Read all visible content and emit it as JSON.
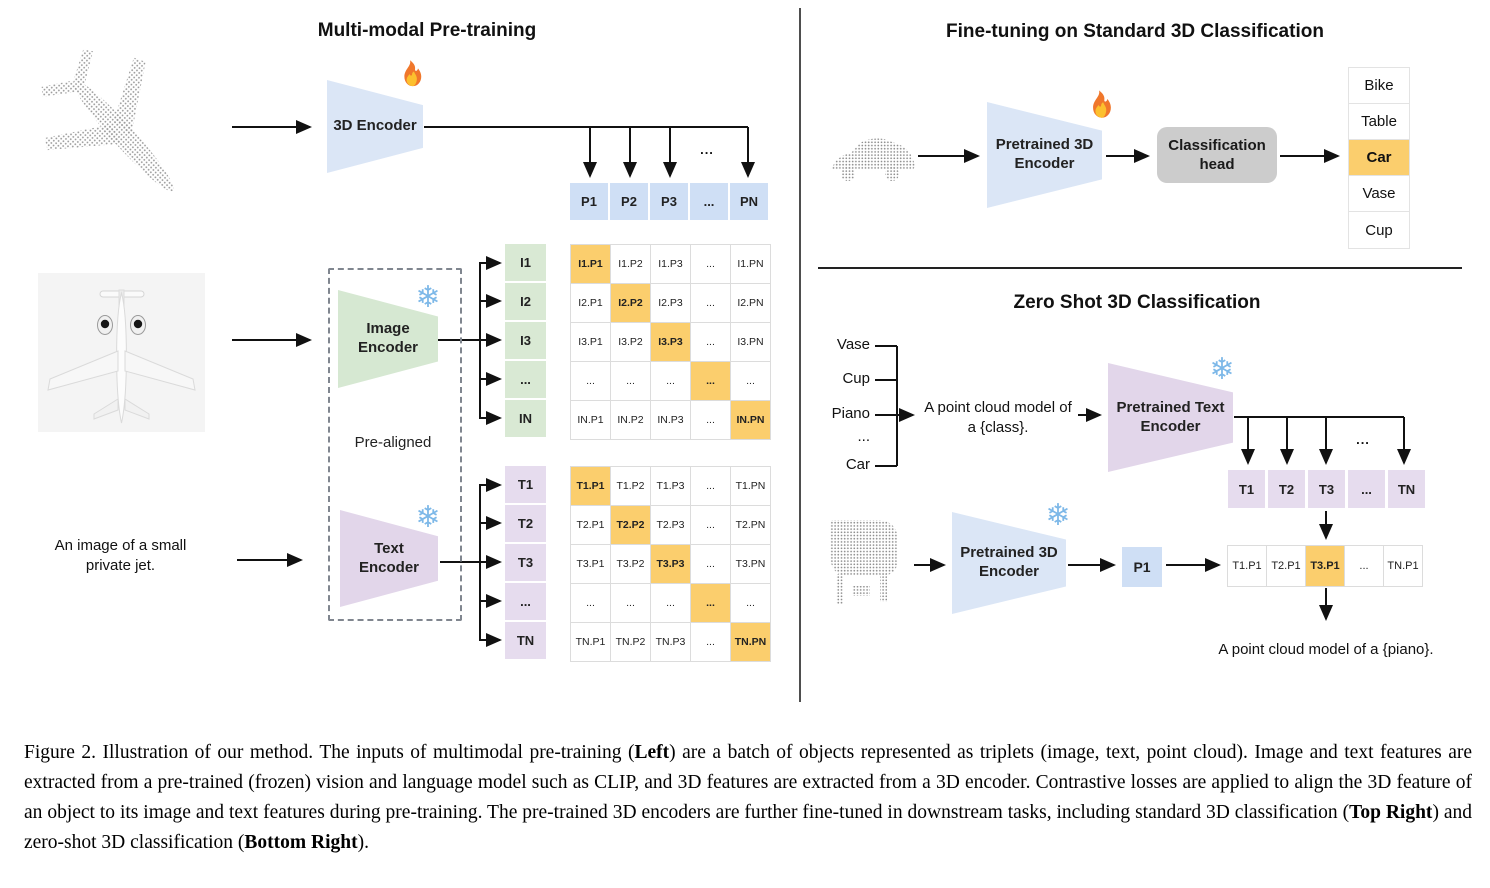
{
  "figure": {
    "left_panel": {
      "title": "Multi-modal Pre-training",
      "inputs": {
        "pointcloud_object": "airplane point cloud",
        "image_object": "airplane image",
        "text_caption_line1": "An image of a small",
        "text_caption_line2": "private jet."
      },
      "encoder_3d_label": "3D Encoder",
      "image_encoder_line1": "Image",
      "image_encoder_line2": "Encoder",
      "text_encoder_line1": "Text",
      "text_encoder_line2": "Encoder",
      "prealigned_label": "Pre-aligned",
      "arrow_ellipsis": "...",
      "p_row": [
        "P1",
        "P2",
        "P3",
        "...",
        "PN"
      ],
      "image_feature_labels": [
        "I1",
        "I2",
        "I3",
        "...",
        "IN"
      ],
      "text_feature_labels": [
        "T1",
        "T2",
        "T3",
        "...",
        "TN"
      ],
      "image_matrix_rows": [
        [
          "I1.P1",
          "I1.P2",
          "I1.P3",
          "...",
          "I1.PN"
        ],
        [
          "I2.P1",
          "I2.P2",
          "I2.P3",
          "...",
          "I2.PN"
        ],
        [
          "I3.P1",
          "I3.P2",
          "I3.P3",
          "...",
          "I3.PN"
        ],
        [
          "...",
          "...",
          "...",
          "...",
          "..."
        ],
        [
          "IN.P1",
          "IN.P2",
          "IN.P3",
          "...",
          "IN.PN"
        ]
      ],
      "text_matrix_rows": [
        [
          "T1.P1",
          "T1.P2",
          "T1.P3",
          "...",
          "T1.PN"
        ],
        [
          "T2.P1",
          "T2.P2",
          "T2.P3",
          "...",
          "T2.PN"
        ],
        [
          "T3.P1",
          "T3.P2",
          "T3.P3",
          "...",
          "T3.PN"
        ],
        [
          "...",
          "...",
          "...",
          "...",
          "..."
        ],
        [
          "TN.P1",
          "TN.P2",
          "TN.P3",
          "...",
          "TN.PN"
        ]
      ]
    },
    "top_right_panel": {
      "title": "Fine-tuning on Standard 3D Classification",
      "input_object": "car point cloud",
      "encoder_line1": "Pretrained 3D",
      "encoder_line2": "Encoder",
      "head_line1": "Classification",
      "head_line2": "head",
      "classes": [
        "Bike",
        "Table",
        "Car",
        "Vase",
        "Cup"
      ],
      "predicted_class": "Car"
    },
    "bottom_right_panel": {
      "title": "Zero Shot 3D Classification",
      "candidate_classes": [
        "Vase",
        "Cup",
        "Piano",
        "...",
        "Car"
      ],
      "prompt_line1": "A point cloud model of",
      "prompt_line2": "a {class}.",
      "text_encoder_line1": "Pretrained Text",
      "text_encoder_line2": "Encoder",
      "t_row": [
        "T1",
        "T2",
        "T3",
        "...",
        "TN"
      ],
      "arrow_ellipsis": "...",
      "input_object": "piano point cloud",
      "encoder_3d_line1": "Pretrained 3D",
      "encoder_3d_line2": "Encoder",
      "p_feature": "P1",
      "similarity_row": [
        "T1.P1",
        "T2.P1",
        "T3.P1",
        "...",
        "TN.P1"
      ],
      "best_match": "T3.P1",
      "result_text": "A point cloud model of a {piano}."
    },
    "caption_segments": [
      {
        "text": "Figure 2. Illustration of our method. The inputs of multimodal pre-training (",
        "bold": false
      },
      {
        "text": "Left",
        "bold": true
      },
      {
        "text": ") are a batch of objects represented as triplets (image, text, point cloud). Image and text features are extracted from a pre-trained (frozen) vision and language model such as CLIP, and 3D features are extracted from a 3D encoder. Contrastive losses are applied to align the 3D feature of an object to its image and text features during pre-training. The pre-trained 3D encoders are further fine-tuned in downstream tasks, including standard 3D classification (",
        "bold": false
      },
      {
        "text": "Top Right",
        "bold": true
      },
      {
        "text": ") and zero-shot 3D classification (",
        "bold": false
      },
      {
        "text": "Bottom Right",
        "bold": true
      },
      {
        "text": ").",
        "bold": false
      }
    ]
  },
  "colors": {
    "encoder_blue": "#dbe6f6",
    "feature_blue": "#cfdff5",
    "encoder_green": "#d6e8d2",
    "feature_green": "#d9e9d4",
    "encoder_purple": "#e2d6ea",
    "feature_purple": "#e6dcee",
    "highlight_orange": "#fbce6d",
    "head_gray": "#cccccc",
    "cell_border": "#dcdcdc",
    "snowflake": "#7db8e8",
    "flame_outer": "#f0772b",
    "flame_inner": "#fcc02e"
  }
}
